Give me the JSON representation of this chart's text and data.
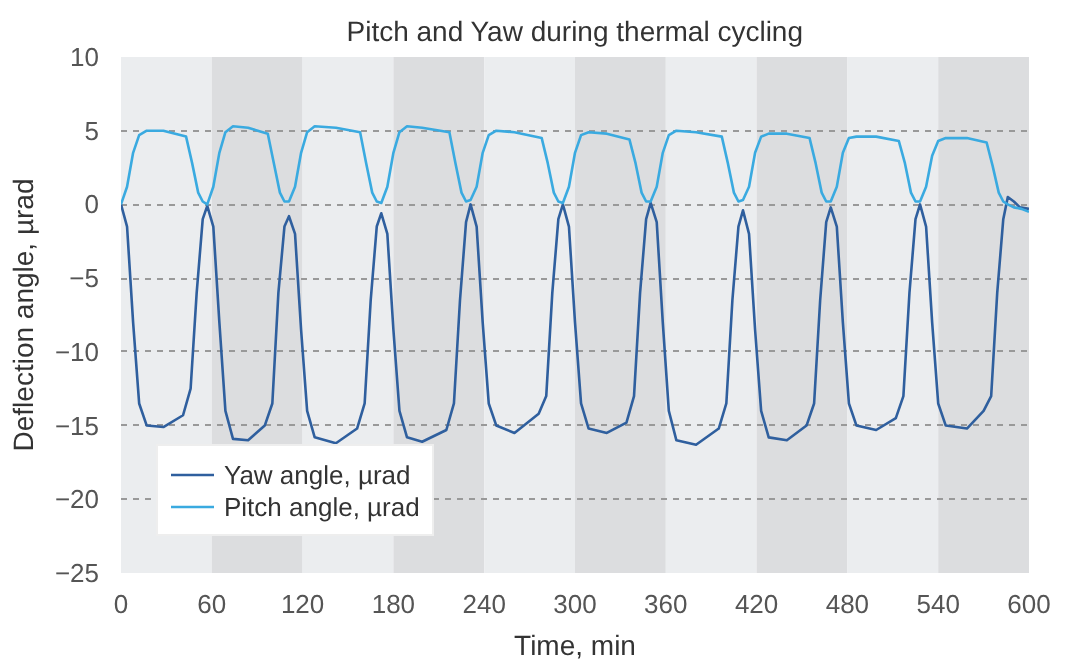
{
  "chart_data": {
    "type": "line",
    "title": "Pitch and Yaw during thermal cycling",
    "xlabel": "Time, min",
    "ylabel": "Deflection angle, µrad",
    "xlim": [
      0,
      600
    ],
    "ylim": [
      -25,
      10
    ],
    "xticks": [
      0,
      60,
      120,
      180,
      240,
      300,
      360,
      420,
      480,
      540,
      600
    ],
    "yticks": [
      -25,
      -20,
      -15,
      -10,
      -5,
      0,
      5,
      10
    ],
    "grid": "y",
    "legend": "bottom left",
    "line_style": "solid",
    "bands": [
      {
        "axis": "x",
        "from": 0,
        "to": 60,
        "color": "#ebedef"
      },
      {
        "axis": "x",
        "from": 60,
        "to": 120,
        "color": "#dcdddf"
      },
      {
        "axis": "x",
        "from": 120,
        "to": 180,
        "color": "#ebedef"
      },
      {
        "axis": "x",
        "from": 180,
        "to": 240,
        "color": "#dcdddf"
      },
      {
        "axis": "x",
        "from": 240,
        "to": 300,
        "color": "#ebedef"
      },
      {
        "axis": "x",
        "from": 300,
        "to": 360,
        "color": "#dcdddf"
      },
      {
        "axis": "x",
        "from": 360,
        "to": 420,
        "color": "#ebedef"
      },
      {
        "axis": "x",
        "from": 420,
        "to": 480,
        "color": "#dcdddf"
      },
      {
        "axis": "x",
        "from": 480,
        "to": 540,
        "color": "#ebedef"
      },
      {
        "axis": "x",
        "from": 540,
        "to": 600,
        "color": "#dcdddf"
      }
    ],
    "series": [
      {
        "name": "Yaw angle, µrad",
        "color": "#2f5f9e",
        "x": [
          0,
          4,
          8,
          12,
          17,
          28,
          41,
          46,
          50,
          54,
          57,
          61,
          65,
          69,
          74,
          84,
          95,
          100,
          104,
          108,
          111,
          115,
          119,
          123,
          128,
          142,
          156,
          161,
          165,
          169,
          172,
          176,
          180,
          184,
          189,
          199,
          215,
          220,
          224,
          228,
          231,
          235,
          239,
          243,
          248,
          260,
          276,
          281,
          285,
          289,
          292,
          296,
          300,
          304,
          309,
          321,
          334,
          339,
          343,
          347,
          350,
          354,
          358,
          362,
          367,
          380,
          395,
          400,
          404,
          408,
          411,
          415,
          419,
          423,
          428,
          440,
          453,
          458,
          462,
          466,
          469,
          473,
          477,
          481,
          486,
          499,
          512,
          517,
          521,
          525,
          528,
          532,
          536,
          540,
          545,
          559,
          570,
          575,
          579,
          583,
          586,
          590,
          594,
          600
        ],
        "values": [
          0,
          -1.5,
          -8,
          -13.5,
          -15,
          -15.1,
          -14.3,
          -12.5,
          -6,
          -1,
          -0.1,
          -1.5,
          -8,
          -14,
          -15.9,
          -16,
          -15,
          -13.5,
          -6,
          -1.5,
          -0.8,
          -2,
          -8.5,
          -14,
          -15.8,
          -16.2,
          -15.2,
          -13.5,
          -6.5,
          -1.5,
          -0.6,
          -2,
          -8.5,
          -14,
          -15.8,
          -16.1,
          -15.3,
          -13.5,
          -6.5,
          -1.2,
          0,
          -1.5,
          -8,
          -13.5,
          -15,
          -15.5,
          -14.2,
          -13,
          -6,
          -1,
          0,
          -1.5,
          -8,
          -13.5,
          -15.2,
          -15.5,
          -14.8,
          -13,
          -6,
          -1,
          0.1,
          -1.2,
          -8,
          -14,
          -16,
          -16.3,
          -15.2,
          -13.5,
          -6.5,
          -1.5,
          -0.4,
          -2,
          -8.5,
          -14,
          -15.8,
          -16,
          -15,
          -13.5,
          -6.5,
          -1.2,
          -0.2,
          -1.5,
          -8,
          -13.5,
          -15,
          -15.3,
          -14.5,
          -13,
          -6,
          -1,
          0,
          -1.5,
          -8,
          -13.5,
          -15,
          -15.2,
          -14,
          -13,
          -6,
          -1,
          0.5,
          0.2,
          -0.2,
          -0.3
        ]
      },
      {
        "name": "Pitch angle, µrad",
        "color": "#3aaae0",
        "x": [
          0,
          4,
          8,
          12,
          17,
          28,
          43,
          47,
          51,
          54,
          57,
          61,
          65,
          69,
          74,
          84,
          97,
          101,
          105,
          108,
          111,
          115,
          119,
          123,
          128,
          142,
          158,
          162,
          166,
          169,
          172,
          176,
          180,
          184,
          189,
          199,
          217,
          221,
          225,
          228,
          231,
          235,
          239,
          243,
          248,
          260,
          278,
          282,
          286,
          289,
          292,
          296,
          300,
          304,
          309,
          321,
          336,
          340,
          344,
          347,
          350,
          354,
          358,
          362,
          367,
          380,
          397,
          401,
          405,
          408,
          411,
          415,
          419,
          423,
          428,
          440,
          455,
          459,
          463,
          466,
          469,
          473,
          477,
          481,
          486,
          499,
          514,
          518,
          522,
          525,
          528,
          532,
          536,
          540,
          545,
          559,
          572,
          576,
          580,
          583,
          586,
          590,
          595,
          600
        ],
        "values": [
          0,
          1.2,
          3.5,
          4.7,
          5,
          5,
          4.6,
          2.8,
          0.8,
          0.2,
          0,
          1.2,
          3.5,
          4.9,
          5.3,
          5.2,
          4.8,
          2.8,
          0.8,
          0.2,
          0.2,
          1.2,
          3.5,
          4.9,
          5.3,
          5.2,
          4.9,
          2.8,
          0.8,
          0.2,
          0.1,
          1.2,
          3.5,
          4.9,
          5.3,
          5.2,
          4.9,
          2.8,
          0.8,
          0.2,
          0.3,
          1.2,
          3.5,
          4.7,
          5,
          4.9,
          4.5,
          2.8,
          0.8,
          0.2,
          0.1,
          1.2,
          3.5,
          4.7,
          4.9,
          4.8,
          4.4,
          2.8,
          0.8,
          0.2,
          0.2,
          1.2,
          3.5,
          4.7,
          5,
          4.9,
          4.6,
          2.8,
          0.8,
          0.2,
          0.3,
          1.2,
          3.5,
          4.6,
          4.8,
          4.8,
          4.5,
          2.8,
          0.8,
          0.2,
          0.2,
          1.2,
          3.5,
          4.5,
          4.6,
          4.6,
          4.3,
          2.8,
          0.8,
          0.2,
          0.2,
          1.2,
          3.3,
          4.3,
          4.5,
          4.5,
          4.2,
          2.6,
          0.8,
          0.2,
          0,
          -0.2,
          -0.3,
          -0.5
        ]
      }
    ]
  }
}
